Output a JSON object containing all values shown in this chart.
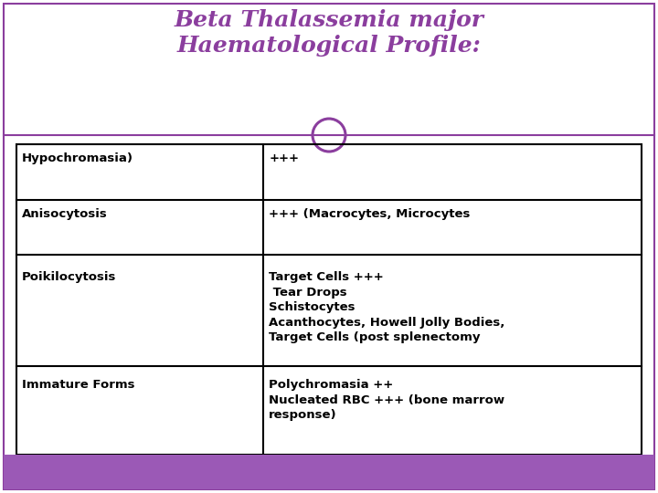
{
  "title_line1": "Beta Thalassemia major",
  "title_line2": "Haematological Profile:",
  "title_color": "#8B3E9E",
  "title_fontsize": 18,
  "table_data": [
    [
      "Hypochromasia)",
      "+++"
    ],
    [
      "Anisocytosis",
      "+++ (Macrocytes, Microcytes"
    ],
    [
      "Poikilocytosis",
      "Target Cells +++\n Tear Drops\nSchistocytes\nAcanthocytes, Howell Jolly Bodies,\nTarget Cells (post splenectomy"
    ],
    [
      "Immature Forms",
      "Polychromasia ++\nNucleated RBC +++ (bone marrow\nresponse)"
    ]
  ],
  "border_color": "#000000",
  "text_color": "#000000",
  "cell_fontsize": 9.5,
  "bg_color": "#ffffff",
  "purple_bar_color": "#9B59B6",
  "divider_color": "#8B3E9E",
  "circle_color": "#8B3E9E",
  "outer_border_color": "#8B3E9E",
  "fig_width": 7.2,
  "fig_height": 5.4,
  "dpi": 100
}
